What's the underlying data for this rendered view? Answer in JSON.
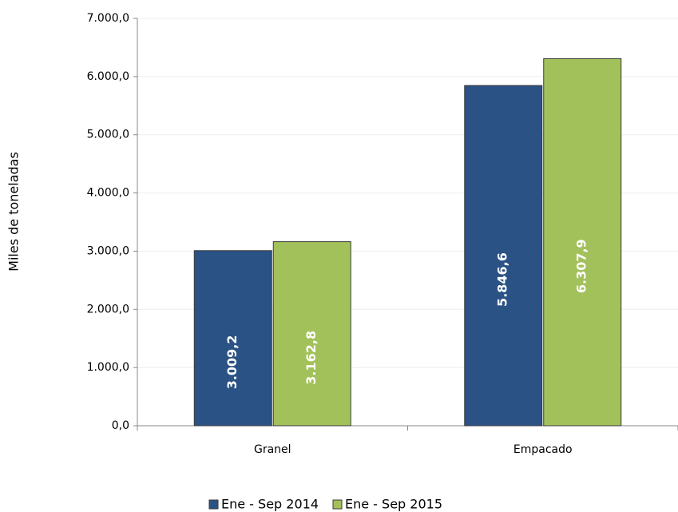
{
  "chart_data": {
    "type": "bar",
    "y_label": "Miles de toneladas",
    "categories": [
      "Granel",
      "Empacado"
    ],
    "series": [
      {
        "name": "Ene - Sep 2014",
        "color": "#2a5285",
        "values": [
          3009.2,
          5846.6
        ],
        "value_labels": [
          "3.009,2",
          "5.846,6"
        ]
      },
      {
        "name": "Ene - Sep 2015",
        "color": "#a2c15b",
        "values": [
          3162.8,
          6307.9
        ],
        "value_labels": [
          "3.162,8",
          "6.307,9"
        ]
      }
    ],
    "ylim": [
      0,
      7000
    ],
    "yticks": [
      {
        "value": 0,
        "label": "0,0"
      },
      {
        "value": 1000,
        "label": "1.000,0"
      },
      {
        "value": 2000,
        "label": "2.000,0"
      },
      {
        "value": 3000,
        "label": "3.000,0"
      },
      {
        "value": 4000,
        "label": "4.000,0"
      },
      {
        "value": 5000,
        "label": "5.000,0"
      },
      {
        "value": 6000,
        "label": "6.000,0"
      },
      {
        "value": 7000,
        "label": "7.000,0"
      }
    ],
    "grid": true,
    "legend": "bottom"
  }
}
